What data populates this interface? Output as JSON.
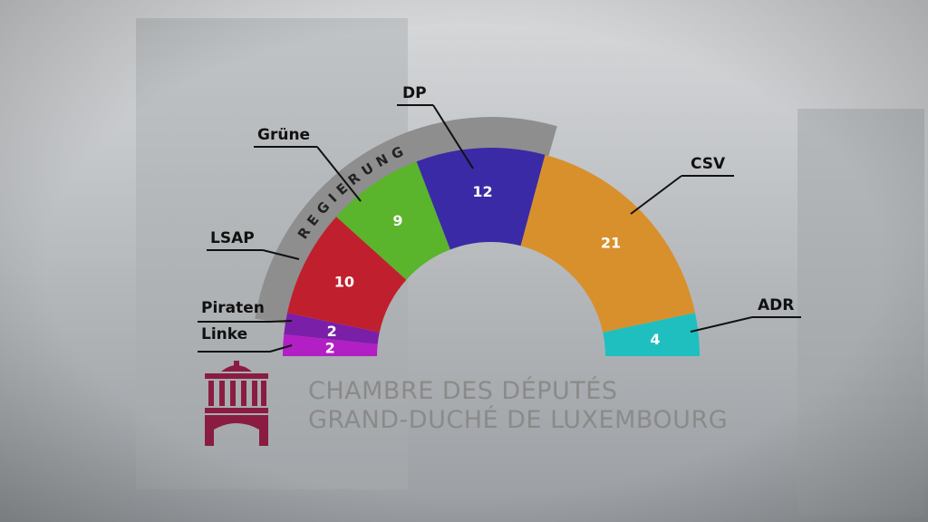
{
  "chart_data": {
    "type": "pie",
    "subtype": "parliament-semicircle",
    "series": [
      {
        "name": "Linke",
        "value": 2,
        "color": "#b21fc4"
      },
      {
        "name": "Piraten",
        "value": 2,
        "color": "#7a1fa8"
      },
      {
        "name": "LSAP",
        "value": 10,
        "color": "#c0202d"
      },
      {
        "name": "Grüne",
        "value": 9,
        "color": "#5ab42c"
      },
      {
        "name": "DP",
        "value": 12,
        "color": "#3a2aa6"
      },
      {
        "name": "CSV",
        "value": 21,
        "color": "#d8902c"
      },
      {
        "name": "ADR",
        "value": 4,
        "color": "#20bfbf"
      }
    ],
    "coalition": {
      "label": "REGIERUNG",
      "members": [
        "LSAP",
        "Grüne",
        "DP"
      ],
      "color": "#8e8e8e"
    }
  },
  "institution": {
    "line1": "CHAMBRE DES DÉPUTÉS",
    "line2": "GRAND-DUCHÉ DE LUXEMBOURG",
    "logo_icon": "chamber-building-logo-icon",
    "logo_color": "#8a1c42"
  }
}
